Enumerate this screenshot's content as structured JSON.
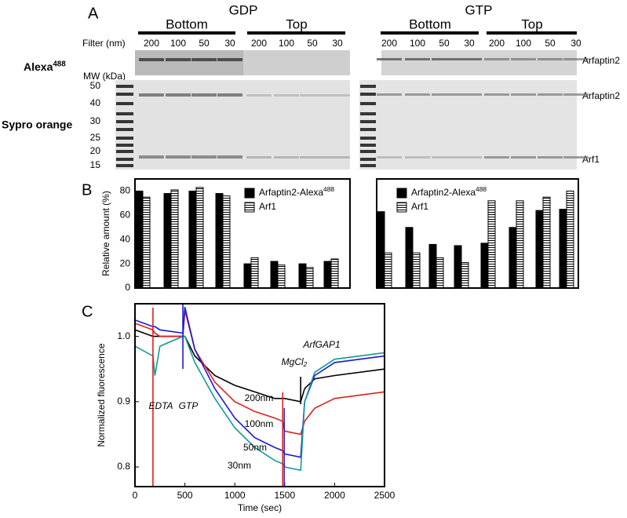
{
  "figure": {
    "panel_labels": [
      "A",
      "B",
      "C"
    ],
    "gel": {
      "conditions": [
        "GDP",
        "GTP"
      ],
      "positions": [
        "Bottom",
        "Top",
        "Bottom",
        "Top"
      ],
      "filter_label": "Filter (nm)",
      "filters": [
        200,
        100,
        50,
        30,
        200,
        100,
        50,
        30,
        200,
        100,
        50,
        30,
        200,
        100,
        50,
        30
      ],
      "stain_alexa": "Alexa488",
      "mw_label": "MW (kDa)",
      "mw_markers": [
        50,
        40,
        30,
        25,
        20,
        15
      ],
      "stain_sypro": "Sypro orange",
      "band_labels": [
        "Arfaptin2",
        "Arfaptin2",
        "Arf1"
      ]
    }
  },
  "chart_data": [
    {
      "type": "bar",
      "categories": [
        null,
        null,
        null,
        null,
        null,
        null,
        null,
        null
      ],
      "y_label": "Relative amount (%)",
      "ylim": [
        0,
        90
      ],
      "yticks": [
        0,
        20,
        40,
        60,
        80
      ],
      "series": [
        {
          "name": "Arfaptin2-Alexa488",
          "color": "#000000",
          "values": [
            80,
            78,
            80,
            78,
            20,
            22,
            20,
            22
          ]
        },
        {
          "name": "Arf1",
          "color": "striped",
          "values": [
            75,
            81,
            83,
            76,
            25,
            19,
            17,
            24
          ]
        }
      ]
    },
    {
      "type": "bar",
      "categories": [
        null,
        null,
        null,
        null,
        null,
        null,
        null,
        null
      ],
      "ylim": [
        0,
        90
      ],
      "series": [
        {
          "name": "Arfaptin2-Alexa488",
          "color": "#000000",
          "values": [
            63,
            50,
            36,
            35,
            37,
            50,
            64,
            65
          ]
        },
        {
          "name": "Arf1",
          "color": "striped",
          "values": [
            29,
            29,
            25,
            21,
            72,
            72,
            75,
            80
          ]
        }
      ]
    },
    {
      "type": "line",
      "x_label": "Time (sec)",
      "y_label": "Normalized fluorescence",
      "xlim": [
        0,
        2500
      ],
      "xticks": [
        0,
        500,
        1000,
        1500,
        2000,
        2500
      ],
      "ylim": [
        0.77,
        1.05
      ],
      "yticks": [
        0.8,
        0.9,
        {
          "value": 1,
          "label": "1.0"
        }
      ],
      "x": [
        0,
        180,
        200,
        250,
        480,
        500,
        600,
        800,
        1000,
        1200,
        1400,
        1480,
        1500,
        1660,
        1700,
        1800,
        2000,
        2500
      ],
      "series": [
        {
          "name": "200nm",
          "color": "#000000",
          "values": [
            1.01,
            1.0,
            1.0,
            1.0,
            1.0,
            1.0,
            0.97,
            0.94,
            0.925,
            0.915,
            0.905,
            0.905,
            0.905,
            0.9,
            0.92,
            0.935,
            0.94,
            0.95
          ]
        },
        {
          "name": "100nm",
          "color": "#e02020",
          "values": [
            1.02,
            1.01,
            1.005,
            1.0,
            1.0,
            1.04,
            0.98,
            0.93,
            0.9,
            0.885,
            0.875,
            0.87,
            0.855,
            0.85,
            0.87,
            0.89,
            0.905,
            0.915
          ]
        },
        {
          "name": "50nm",
          "color": "#1a1ad0",
          "values": [
            1.025,
            1.015,
            1.015,
            1.01,
            1.005,
            1.045,
            0.98,
            0.92,
            0.875,
            0.845,
            0.83,
            0.825,
            0.82,
            0.815,
            0.9,
            0.94,
            0.96,
            0.97
          ]
        },
        {
          "name": "30nm",
          "color": "#159a96",
          "values": [
            0.985,
            0.97,
            0.94,
            0.985,
            1.0,
            1.0,
            0.96,
            0.905,
            0.86,
            0.83,
            0.81,
            0.805,
            0.8,
            0.795,
            0.9,
            0.945,
            0.965,
            0.975
          ]
        }
      ],
      "annotations": [
        {
          "text": "EDTA",
          "x": 180,
          "color": "#e02020"
        },
        {
          "text": "GTP",
          "x": 480,
          "color": "#1a1ad0"
        },
        {
          "text": "MgCl2",
          "x": 1480,
          "color": "#e02020"
        },
        {
          "text": "ArfGAP1",
          "x": 1660,
          "color": "#000000"
        }
      ]
    }
  ]
}
